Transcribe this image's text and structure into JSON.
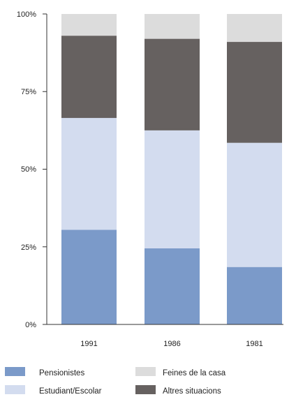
{
  "chart_data": {
    "type": "bar",
    "stacked": true,
    "normalized_percent": true,
    "categories": [
      "1991",
      "1986",
      "1981"
    ],
    "series": [
      {
        "name": "Pensionistes",
        "color": "#7b9ac9",
        "values": [
          30.5,
          24.5,
          18.5
        ]
      },
      {
        "name": "Estudiant/Escolar",
        "color": "#d3dcef",
        "values": [
          36,
          38,
          40
        ]
      },
      {
        "name": "Altres situacions",
        "color": "#666160",
        "values": [
          26.5,
          29.5,
          32.5
        ]
      },
      {
        "name": "Feines de la casa",
        "color": "#dcdcdc",
        "values": [
          7,
          8,
          9
        ]
      }
    ],
    "yticks": [
      "0%",
      "25%",
      "50%",
      "75%",
      "100%"
    ],
    "ylim": [
      0,
      100
    ],
    "grid": false,
    "legend": {
      "placement": "bottom",
      "order": [
        "Pensionistes",
        "Feines de la casa",
        "Estudiant/Escolar",
        "Altres situacions"
      ]
    }
  }
}
